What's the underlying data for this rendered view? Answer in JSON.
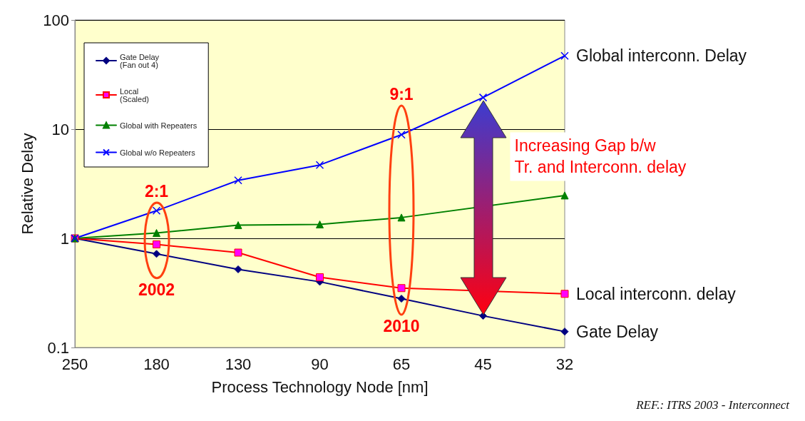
{
  "chart_data": {
    "type": "line",
    "xlabel": "Process Technology Node [nm]",
    "ylabel": "Relative Delay",
    "categories": [
      "250",
      "180",
      "130",
      "90",
      "65",
      "45",
      "32"
    ],
    "series": [
      {
        "name": "Gate Delay\n(Fan out 4)",
        "color": "#000080",
        "marker": "diamond",
        "values": [
          1,
          0.72,
          0.52,
          0.4,
          0.28,
          0.195,
          0.14
        ]
      },
      {
        "name": "Local\n(Scaled)",
        "color": "#ff0000",
        "marker": "square",
        "values": [
          1,
          0.88,
          0.74,
          0.44,
          0.35,
          null,
          0.31
        ]
      },
      {
        "name": "Global with Repeaters",
        "color": "#008000",
        "marker": "triangle",
        "values": [
          1,
          1.12,
          1.32,
          1.34,
          1.55,
          null,
          2.47
        ]
      },
      {
        "name": "Global w/o Repeaters",
        "color": "#0000ff",
        "marker": "cross",
        "values": [
          1,
          1.79,
          3.4,
          4.7,
          8.9,
          19.5,
          47
        ]
      }
    ],
    "log": "y",
    "ylim": [
      0.1,
      100
    ],
    "yticks": [
      0.1,
      1,
      10,
      100
    ],
    "grid": "y",
    "legend": "top left",
    "annotations": [
      {
        "text": "Global interconn. Delay",
        "x": "32",
        "y": 47
      },
      {
        "text": "Local interconn. delay",
        "x": "32",
        "y": 0.31
      },
      {
        "text": "Gate Delay",
        "x": "32",
        "y": 0.14
      },
      "2:1",
      "2002",
      "9:1",
      "2010",
      "Increasing Gap b/w\nTr. and Interconn. delay",
      "REF.: ITRS 2003 - Interconnect"
    ]
  }
}
